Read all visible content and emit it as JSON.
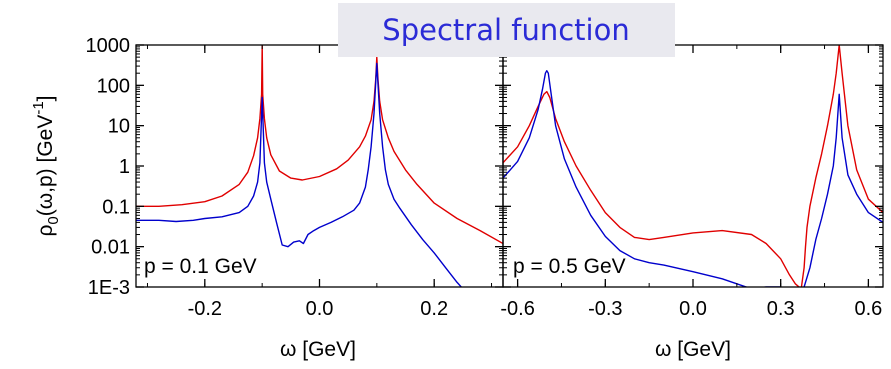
{
  "banner": {
    "title": "Spectral function"
  },
  "shared_ylabel": {
    "prefix": "ρ",
    "sub": "0",
    "main": "(ω,p) [GeV",
    "sup": "-1",
    "suffix": "]"
  },
  "colors": {
    "red": "#e00000",
    "blue": "#0000cc",
    "axis": "#000000",
    "banner_text": "#2b2bd6",
    "banner_bg": "#e9e9ef"
  },
  "chart_data": [
    {
      "type": "line",
      "annotation": "p = 0.1 GeV",
      "xlabel": "ω [GeV]",
      "xlim": [
        -0.32,
        0.32
      ],
      "ylim": [
        0.001,
        1000
      ],
      "yscale": "log",
      "xticks": [
        -0.2,
        0.0,
        0.2
      ],
      "xtick_labels": [
        "-0.2",
        "0.0",
        "0.2"
      ],
      "yticks": [
        0.001,
        0.01,
        0.1,
        1,
        10,
        100,
        1000
      ],
      "ytick_labels": [
        "1E-3",
        "0.01",
        "0.1",
        "1",
        "10",
        "100",
        "1000"
      ],
      "series": [
        {
          "color": "red",
          "x": [
            -0.32,
            -0.28,
            -0.24,
            -0.2,
            -0.17,
            -0.14,
            -0.125,
            -0.115,
            -0.108,
            -0.104,
            -0.101,
            -0.1,
            -0.099,
            -0.096,
            -0.092,
            -0.085,
            -0.07,
            -0.05,
            -0.03,
            0.0,
            0.03,
            0.05,
            0.07,
            0.08,
            0.09,
            0.095,
            0.098,
            0.1,
            0.102,
            0.105,
            0.11,
            0.12,
            0.13,
            0.15,
            0.17,
            0.2,
            0.24,
            0.28,
            0.32
          ],
          "y": [
            0.1,
            0.1,
            0.11,
            0.13,
            0.18,
            0.35,
            0.7,
            1.8,
            5,
            15,
            60,
            1000,
            60,
            15,
            5,
            1.9,
            0.75,
            0.5,
            0.45,
            0.55,
            0.85,
            1.4,
            3,
            5.5,
            14,
            40,
            140,
            500,
            140,
            40,
            14,
            5,
            2.3,
            0.8,
            0.35,
            0.12,
            0.05,
            0.025,
            0.012
          ]
        },
        {
          "color": "blue",
          "x": [
            -0.32,
            -0.28,
            -0.25,
            -0.22,
            -0.2,
            -0.17,
            -0.14,
            -0.125,
            -0.115,
            -0.108,
            -0.104,
            -0.1,
            -0.096,
            -0.092,
            -0.085,
            -0.075,
            -0.065,
            -0.055,
            -0.045,
            -0.035,
            -0.028,
            -0.02,
            -0.01,
            0.0,
            0.02,
            0.04,
            0.06,
            0.07,
            0.08,
            0.085,
            0.09,
            0.095,
            0.1,
            0.105,
            0.11,
            0.115,
            0.12,
            0.13,
            0.14,
            0.16,
            0.18,
            0.2,
            0.22,
            0.24,
            0.25
          ],
          "y": [
            0.045,
            0.045,
            0.042,
            0.045,
            0.05,
            0.055,
            0.07,
            0.1,
            0.18,
            0.4,
            1.2,
            50,
            1.2,
            0.4,
            0.15,
            0.04,
            0.011,
            0.01,
            0.013,
            0.014,
            0.012,
            0.02,
            0.025,
            0.03,
            0.04,
            0.055,
            0.08,
            0.12,
            0.3,
            0.8,
            3,
            20,
            350,
            20,
            3,
            0.8,
            0.35,
            0.15,
            0.09,
            0.035,
            0.015,
            0.007,
            0.003,
            0.0013,
            0.0009
          ]
        }
      ]
    },
    {
      "type": "line",
      "annotation": "p = 0.5 GeV",
      "xlabel": "ω [GeV]",
      "xlim": [
        -0.65,
        0.65
      ],
      "ylim": [
        0.001,
        1000
      ],
      "yscale": "log",
      "xticks": [
        -0.6,
        -0.3,
        0.0,
        0.3,
        0.6
      ],
      "xtick_labels": [
        "-0.6",
        "-0.3",
        "0.0",
        "0.3",
        "0.6"
      ],
      "series": [
        {
          "color": "red",
          "x": [
            -0.65,
            -0.6,
            -0.56,
            -0.53,
            -0.51,
            -0.5,
            -0.49,
            -0.47,
            -0.44,
            -0.4,
            -0.35,
            -0.3,
            -0.25,
            -0.2,
            -0.15,
            -0.1,
            0.0,
            0.1,
            0.2,
            0.25,
            0.3,
            0.33,
            0.35,
            0.37,
            0.38,
            0.385,
            0.39,
            0.4,
            0.42,
            0.44,
            0.46,
            0.48,
            0.49,
            0.5,
            0.51,
            0.53,
            0.56,
            0.6,
            0.65
          ],
          "y": [
            1.2,
            3,
            10,
            30,
            60,
            70,
            50,
            15,
            4,
            1,
            0.25,
            0.07,
            0.03,
            0.017,
            0.015,
            0.017,
            0.022,
            0.025,
            0.02,
            0.012,
            0.005,
            0.002,
            0.0012,
            0.0009,
            0.003,
            0.01,
            0.03,
            0.1,
            0.5,
            2,
            10,
            60,
            200,
            1000,
            200,
            10,
            0.8,
            0.15,
            0.07
          ]
        },
        {
          "color": "blue",
          "x": [
            -0.65,
            -0.6,
            -0.56,
            -0.53,
            -0.515,
            -0.505,
            -0.5,
            -0.495,
            -0.485,
            -0.47,
            -0.44,
            -0.4,
            -0.35,
            -0.3,
            -0.25,
            -0.2,
            -0.15,
            -0.1,
            0.0,
            0.1,
            0.15,
            0.2,
            0.25,
            0.3,
            0.33,
            0.36,
            0.38,
            0.4,
            0.42,
            0.44,
            0.46,
            0.48,
            0.49,
            0.5,
            0.51,
            0.53,
            0.56,
            0.6,
            0.65
          ],
          "y": [
            0.5,
            1.3,
            5,
            25,
            80,
            200,
            230,
            200,
            60,
            10,
            1.5,
            0.3,
            0.06,
            0.018,
            0.008,
            0.005,
            0.004,
            0.0035,
            0.0024,
            0.0016,
            0.0012,
            0.0009,
            0.001,
            0.001,
            0.0009,
            0.0008,
            0.001,
            0.003,
            0.015,
            0.05,
            0.2,
            1,
            5,
            60,
            5,
            0.6,
            0.2,
            0.07,
            0.04
          ]
        }
      ]
    }
  ]
}
